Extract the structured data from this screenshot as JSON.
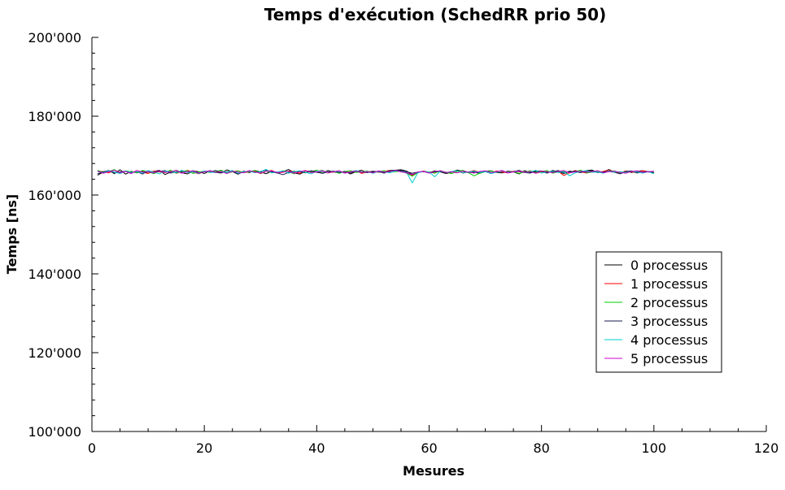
{
  "chart_data": {
    "type": "line",
    "title": "Temps d'exécution (SchedRR prio 50)",
    "xlabel": "Mesures",
    "ylabel": "Temps [ns]",
    "xlim": [
      0,
      120
    ],
    "ylim": [
      100000,
      200000
    ],
    "x_ticks": [
      0,
      20,
      40,
      60,
      80,
      100,
      120
    ],
    "x_tick_labels": [
      "0",
      "20",
      "40",
      "60",
      "80",
      "100",
      "120"
    ],
    "y_ticks": [
      100000,
      120000,
      140000,
      160000,
      180000,
      200000
    ],
    "y_tick_labels": [
      "100'000",
      "120'000",
      "140'000",
      "160'000",
      "180'000",
      "200'000"
    ],
    "grid": false,
    "legend_position": "right",
    "x_start": 1,
    "series": [
      {
        "name": "0 processus",
        "color": "#000000",
        "values": [
          165050,
          165820,
          166240,
          165430,
          166410,
          165300,
          166020,
          165610,
          166130,
          165520,
          165990,
          166270,
          165200,
          165810,
          166300,
          165640,
          165370,
          166080,
          165920,
          165460,
          166190,
          165730,
          165580,
          166360,
          165940,
          165280,
          166040,
          165690,
          166210,
          165850,
          165410,
          166030,
          165760,
          165920,
          166480,
          165610,
          165300,
          166120,
          165990,
          165780,
          165530,
          166220,
          165860,
          165640,
          166010,
          165340,
          165950,
          166280,
          165710,
          165820,
          165990,
          165560,
          166170,
          166290,
          166410,
          166070,
          165200,
          165810,
          165930,
          165640,
          166110,
          165880,
          165460,
          165780,
          166350,
          166000,
          165690,
          165770,
          165510,
          165990,
          166150,
          165730,
          165620,
          166040,
          165890,
          165350,
          166180,
          165710,
          166130,
          165980,
          165570,
          166240,
          165820,
          165450,
          166060,
          165880,
          165690,
          166210,
          166330,
          165740,
          165920,
          166460,
          165810,
          165590,
          166080,
          165720,
          165950,
          166200,
          165850,
          165640
        ]
      },
      {
        "name": "1 processus",
        "color": "#ff0000",
        "values": [
          166110,
          165940,
          165620,
          166320,
          165750,
          166030,
          165590,
          166210,
          165830,
          165470,
          166090,
          165880,
          165660,
          166180,
          165520,
          165930,
          166270,
          165800,
          165390,
          166050,
          165980,
          165710,
          166240,
          165570,
          165900,
          166150,
          165680,
          165860,
          166020,
          165440,
          165990,
          166230,
          165610,
          165780,
          166060,
          165880,
          165490,
          166140,
          165720,
          165960,
          166300,
          165580,
          165820,
          166090,
          165670,
          165930,
          166180,
          165490,
          165850,
          166040,
          165760,
          165990,
          166260,
          166100,
          165910,
          165720,
          164980,
          165660,
          166080,
          165830,
          165550,
          166190,
          165700,
          165910,
          166070,
          165590,
          165840,
          166210,
          165730,
          165960,
          165480,
          166120,
          165860,
          165610,
          166030,
          165900,
          165690,
          166170,
          165540,
          165850,
          166100,
          165770,
          165950,
          164960,
          165680,
          166210,
          165880,
          165560,
          166040,
          165730,
          165990,
          166280,
          165820,
          165490,
          166110,
          165870,
          165640,
          166190,
          165940,
          165760
        ]
      },
      {
        "name": "2 processus",
        "color": "#00cc00",
        "values": [
          166240,
          165750,
          165980,
          166450,
          165530,
          166140,
          165870,
          165660,
          166220,
          165940,
          165400,
          166050,
          165790,
          166300,
          165620,
          165910,
          166180,
          165480,
          165850,
          166070,
          165730,
          165960,
          166290,
          165560,
          165880,
          166120,
          165690,
          165940,
          166230,
          165510,
          166010,
          165830,
          165640,
          166170,
          165920,
          165370,
          166100,
          165740,
          165880,
          166320,
          165610,
          165870,
          166040,
          165520,
          165950,
          166200,
          165730,
          165860,
          166090,
          165640,
          165980,
          166150,
          165760,
          165920,
          166040,
          165510,
          164780,
          165700,
          166010,
          165860,
          165590,
          166130,
          165800,
          165430,
          165990,
          166260,
          165690,
          164860,
          165560,
          165900,
          166050,
          165780,
          166200,
          165620,
          165940,
          165480,
          165830,
          166110,
          165760,
          165990,
          166180,
          165550,
          165870,
          166020,
          165690,
          165940,
          166310,
          165600,
          165820,
          166080,
          165730,
          165960,
          166140,
          165570,
          165890,
          166040,
          165710,
          165850,
          165980,
          165700
        ]
      },
      {
        "name": "3 processus",
        "color": "#1a1a50",
        "values": [
          165360,
          165920,
          166150,
          165580,
          165830,
          166060,
          165690,
          165910,
          165330,
          166140,
          165790,
          165980,
          166220,
          165570,
          165860,
          166040,
          165720,
          166180,
          165450,
          165960,
          165810,
          166250,
          165640,
          165890,
          166130,
          165370,
          165900,
          166070,
          165680,
          165950,
          166310,
          165820,
          165590,
          165170,
          165740,
          166020,
          165870,
          165610,
          166160,
          165930,
          165480,
          165840,
          166050,
          165720,
          165980,
          165550,
          166190,
          165860,
          165690,
          166040,
          165900,
          165630,
          166220,
          166320,
          166180,
          165910,
          165540,
          165830,
          165990,
          165700,
          165860,
          166100,
          165670,
          165920,
          166200,
          165560,
          165880,
          166070,
          165750,
          165960,
          165480,
          165810,
          166130,
          165640,
          165920,
          166260,
          165700,
          165580,
          165980,
          166100,
          165720,
          165860,
          166230,
          165560,
          165910,
          166050,
          165780,
          165940,
          166170,
          165690,
          165860,
          166010,
          165740,
          165380,
          165970,
          166130,
          165600,
          165840,
          165980,
          165710
        ]
      },
      {
        "name": "4 processus",
        "color": "#00cccc",
        "values": [
          165980,
          165600,
          166180,
          165850,
          165430,
          166090,
          165760,
          165920,
          165550,
          166210,
          165810,
          165380,
          166050,
          165890,
          165640,
          166270,
          165730,
          165900,
          165480,
          166120,
          165830,
          165660,
          166000,
          165770,
          166230,
          165510,
          165880,
          166040,
          165690,
          165940,
          166520,
          165620,
          165860,
          166080,
          165550,
          165910,
          166150,
          165740,
          165400,
          165980,
          166190,
          165670,
          165900,
          166060,
          165580,
          165850,
          166210,
          165720,
          165960,
          165510,
          166030,
          165880,
          165640,
          166100,
          165940,
          165760,
          163100,
          165650,
          165990,
          165820,
          164650,
          166080,
          165710,
          165940,
          166190,
          165580,
          165860,
          166030,
          165700,
          165950,
          165460,
          165800,
          166140,
          165660,
          165880,
          166010,
          165740,
          165930,
          166250,
          165560,
          165850,
          166070,
          165690,
          165910,
          164880,
          165640,
          165980,
          166200,
          165770,
          165860,
          165530,
          166100,
          165790,
          165940,
          165680,
          166020,
          165850,
          165570,
          165930,
          165400
        ]
      },
      {
        "name": "5 processus",
        "color": "#cc00cc",
        "values": [
          166060,
          165520,
          165900,
          166280,
          165670,
          165980,
          165440,
          166200,
          165800,
          165960,
          165590,
          166130,
          165740,
          165880,
          166250,
          165510,
          165930,
          166080,
          165620,
          165870,
          166190,
          165730,
          165960,
          165450,
          166020,
          165790,
          165650,
          166210,
          165840,
          165570,
          165990,
          166120,
          165700,
          165860,
          166040,
          165520,
          165910,
          166230,
          165680,
          165870,
          166010,
          165750,
          165930,
          166180,
          165530,
          165880,
          166060,
          165710,
          165950,
          165630,
          166140,
          165800,
          165940,
          166250,
          165870,
          165610,
          165180,
          165840,
          166000,
          165560,
          165940,
          166170,
          165730,
          165880,
          165620,
          166090,
          165830,
          165560,
          165990,
          166150,
          165680,
          165920,
          166240,
          165590,
          165860,
          166020,
          165770,
          165940,
          165510,
          166120,
          165850,
          165700,
          165980,
          166200,
          165620,
          165880,
          166040,
          165790,
          165940,
          166180,
          165660,
          165890,
          166070,
          165720,
          165540,
          165980,
          166160,
          165740,
          165900,
          166060
        ]
      }
    ]
  }
}
